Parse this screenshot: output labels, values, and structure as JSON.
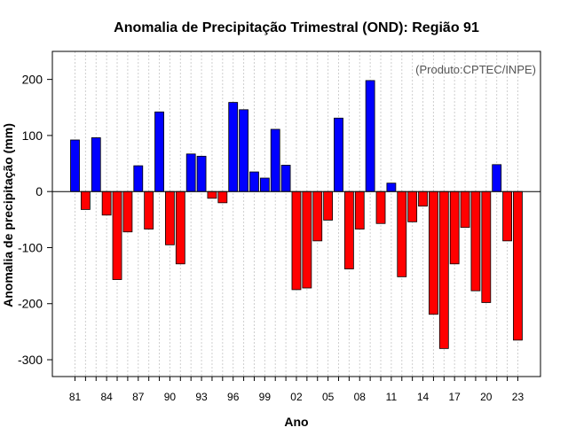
{
  "chart_data": {
    "type": "bar",
    "title": "Anomalia de Precipitação Trimestral (OND): Região 91",
    "xlabel": "Ano",
    "ylabel": "Anomalia de precipitação (mm)",
    "credit": "(Produto:CPTEC/INPE)",
    "ylim": [
      -330,
      250
    ],
    "yticks": [
      -300,
      -200,
      -100,
      0,
      100,
      200
    ],
    "yticks_labels": [
      "-300",
      "-200",
      "-100",
      "0",
      "100",
      "200"
    ],
    "xtick_labels": [
      "81",
      "84",
      "87",
      "90",
      "93",
      "96",
      "99",
      "02",
      "05",
      "08",
      "11",
      "14",
      "17",
      "20",
      "23"
    ],
    "grid": true,
    "positive_color": "#0000ff",
    "negative_color": "#ff0000",
    "categories": [
      "1981",
      "1982",
      "1983",
      "1984",
      "1985",
      "1986",
      "1987",
      "1988",
      "1989",
      "1990",
      "1991",
      "1992",
      "1993",
      "1994",
      "1995",
      "1996",
      "1997",
      "1998",
      "1999",
      "2000",
      "2001",
      "2002",
      "2003",
      "2004",
      "2005",
      "2006",
      "2007",
      "2008",
      "2009",
      "2010",
      "2011",
      "2012",
      "2013",
      "2014",
      "2015",
      "2016",
      "2017",
      "2018",
      "2019",
      "2020",
      "2021",
      "2022",
      "2023"
    ],
    "values": [
      92,
      -32,
      96,
      -42,
      -157,
      -72,
      46,
      -67,
      142,
      -95,
      -129,
      67,
      63,
      -12,
      -20,
      159,
      146,
      35,
      24,
      111,
      47,
      -175,
      -172,
      -88,
      -51,
      131,
      -138,
      -67,
      198,
      -57,
      15,
      -152,
      -54,
      -26,
      -219,
      -280,
      -129,
      -64,
      -177,
      -198,
      48,
      -88,
      -265
    ]
  }
}
